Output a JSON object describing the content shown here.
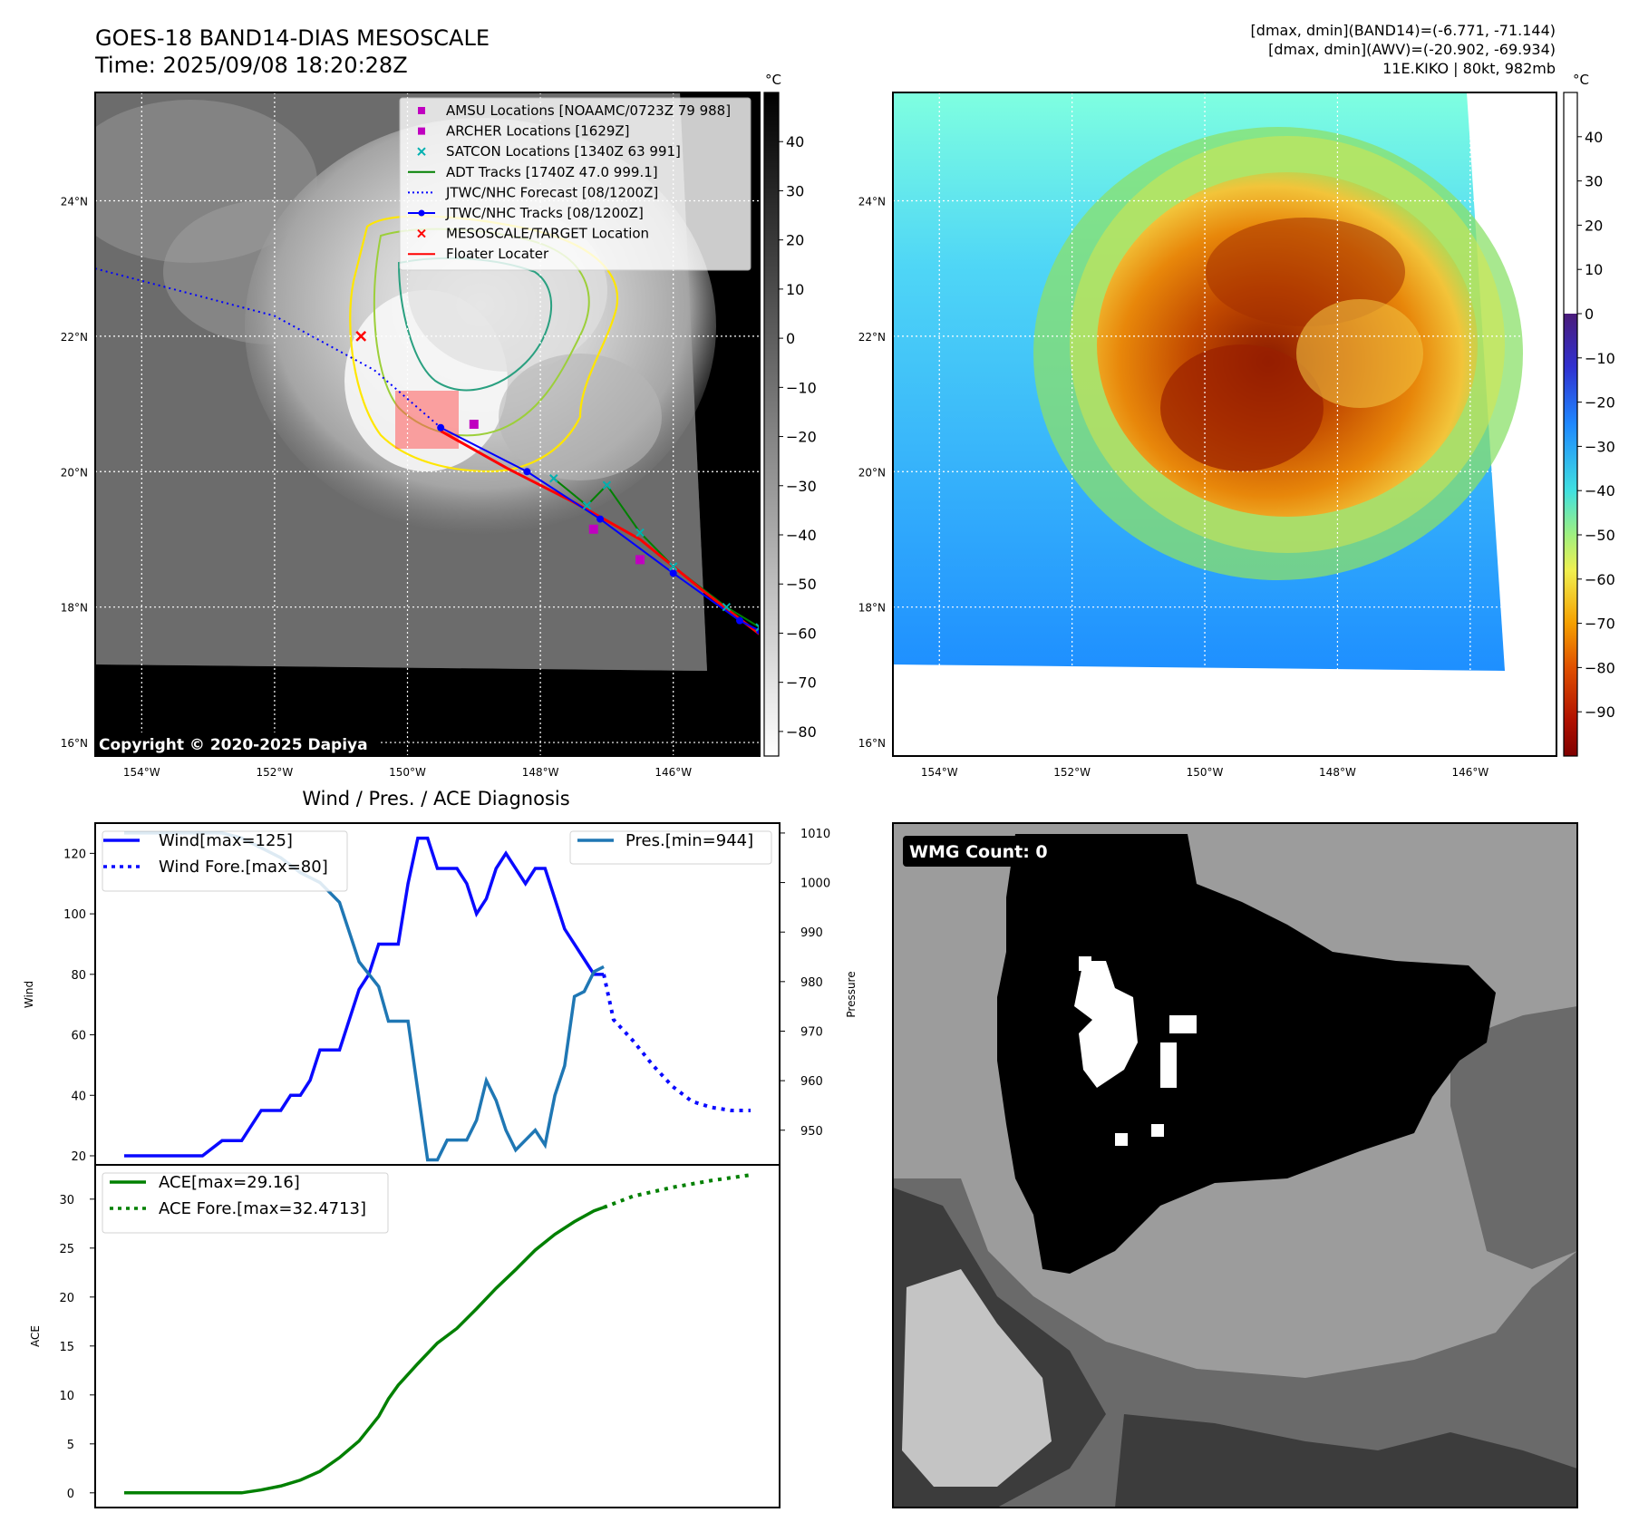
{
  "header": {
    "title": "GOES-18 BAND14-DIAS MESOSCALE",
    "time": "Time: 2025/09/08 18:20:28Z",
    "stats_band14": "[dmax, dmin](BAND14)=(-6.771, -71.144)",
    "stats_awv": "[dmax, dmin](AWV)=(-20.902, -69.934)",
    "storm": "11E.KIKO | 80kt, 982mb"
  },
  "colors": {
    "wind": "#0a0aff",
    "pressure": "#1f77b4",
    "ace": "#008000",
    "floater": "#ff0000",
    "amsu": "#c000c0",
    "satcon": "#00b0b0",
    "adt": "#008000"
  },
  "map": {
    "unit": "°C",
    "lat_ticks": [
      "16°N",
      "18°N",
      "20°N",
      "22°N",
      "24°N"
    ],
    "lon_ticks": [
      "154°W",
      "152°W",
      "150°W",
      "148°W",
      "146°W"
    ],
    "lon_range": [
      -154.7,
      -144.7
    ],
    "lat_range": [
      15.8,
      25.6
    ],
    "ir_colorbar": {
      "ticks": [
        40,
        30,
        20,
        10,
        0,
        -10,
        -20,
        -30,
        -40,
        -50,
        -60,
        -70,
        -80
      ],
      "range": [
        -85,
        50
      ]
    },
    "awv_colorbar": {
      "ticks": [
        40,
        30,
        20,
        10,
        0,
        -10,
        -20,
        -30,
        -40,
        -50,
        -60,
        -70,
        -80,
        -90
      ],
      "range": [
        -100,
        50
      ]
    },
    "copyright": "Copyright © 2020-2025 Dapiya",
    "legend": [
      {
        "label": "AMSU Locations [NOAAMC/0723Z 79 988]",
        "marker": "square",
        "color": "#c000c0"
      },
      {
        "label": "ARCHER Locations [1629Z]",
        "marker": "square",
        "color": "#c000c0"
      },
      {
        "label": "SATCON Locations [1340Z 63 991]",
        "marker": "x",
        "color": "#00b0b0"
      },
      {
        "label": "ADT Tracks [1740Z 47.0 999.1]",
        "marker": "line",
        "color": "#008000"
      },
      {
        "label": "JTWC/NHC Forecast [08/1200Z]",
        "marker": "dotted",
        "color": "#0000ff"
      },
      {
        "label": "JTWC/NHC Tracks [08/1200Z]",
        "marker": "dotline",
        "color": "#0000ff"
      },
      {
        "label": "MESOSCALE/TARGET Location",
        "marker": "x",
        "color": "#ff0000"
      },
      {
        "label": "Floater Locater",
        "marker": "line",
        "color": "#ff0000"
      }
    ],
    "forecast_track": [
      [
        -154.7,
        23.0
      ],
      [
        -152.0,
        22.3
      ],
      [
        -150.5,
        21.5
      ],
      [
        -149.5,
        20.65
      ]
    ],
    "best_track": [
      [
        -149.5,
        20.65
      ],
      [
        -148.2,
        20.0
      ],
      [
        -147.1,
        19.3
      ],
      [
        -146.0,
        18.5
      ],
      [
        -145.0,
        17.8
      ],
      [
        -144.7,
        17.65
      ]
    ],
    "floater_track": [
      [
        -149.5,
        20.6
      ],
      [
        -148.5,
        20.05
      ],
      [
        -147.5,
        19.55
      ],
      [
        -146.5,
        19.0
      ],
      [
        -145.5,
        18.2
      ],
      [
        -144.7,
        17.6
      ]
    ],
    "adt_track": [
      [
        -147.8,
        19.9
      ],
      [
        -147.3,
        19.5
      ],
      [
        -147.0,
        19.8
      ],
      [
        -146.5,
        19.1
      ],
      [
        -146.0,
        18.6
      ],
      [
        -145.2,
        18.0
      ],
      [
        -144.7,
        17.7
      ]
    ],
    "amsu_points": [
      [
        -149.0,
        20.7
      ],
      [
        -147.2,
        19.15
      ],
      [
        -146.5,
        18.7
      ]
    ],
    "target_point": [
      -150.7,
      22.0
    ]
  },
  "chart_data": [
    {
      "type": "line",
      "title": "Wind / Pres. / ACE Diagnosis",
      "ylabel": "Wind",
      "ylabel_right": "Pressure",
      "ylim": [
        17,
        130
      ],
      "ylim_right": [
        943,
        1012
      ],
      "yticks": [
        20,
        40,
        60,
        80,
        100,
        120
      ],
      "yticks_right": [
        950,
        960,
        970,
        980,
        990,
        1000,
        1010
      ],
      "x": [
        0,
        1,
        2,
        3,
        4,
        5,
        6,
        7,
        8,
        9,
        10,
        11,
        12,
        13,
        14,
        15,
        16,
        17,
        18,
        19,
        20,
        21,
        22,
        23,
        24,
        25,
        26,
        27,
        28,
        29,
        30,
        31,
        32,
        33,
        34,
        35,
        36,
        37,
        38,
        39,
        40,
        41,
        42,
        43,
        44,
        45,
        46,
        47,
        48,
        49,
        50,
        51,
        52,
        53,
        54,
        55,
        56,
        57,
        58,
        59,
        60,
        61,
        62,
        63,
        64
      ],
      "series": [
        {
          "name": "Wind[max=125]",
          "axis": "left",
          "x": [
            0,
            2,
            4,
            6,
            8,
            10,
            12,
            14,
            16,
            17,
            18,
            19,
            20,
            22,
            24,
            25,
            26,
            27,
            28,
            29,
            30,
            31,
            32,
            33,
            34,
            35,
            36,
            37,
            38,
            39,
            40,
            41,
            42,
            43,
            44,
            45,
            46,
            47,
            48,
            49
          ],
          "values": [
            20,
            20,
            20,
            20,
            20,
            25,
            25,
            35,
            35,
            40,
            40,
            45,
            55,
            55,
            75,
            80,
            90,
            90,
            90,
            110,
            125,
            125,
            115,
            115,
            115,
            110,
            100,
            105,
            115,
            120,
            115,
            110,
            115,
            115,
            105,
            95,
            90,
            85,
            80,
            80
          ]
        },
        {
          "name": "Wind Fore.[max=80]",
          "axis": "left",
          "x": [
            49,
            50,
            52,
            54,
            56,
            58,
            60,
            62,
            64
          ],
          "values": [
            80,
            65,
            58,
            50,
            43,
            38,
            36,
            35,
            35
          ]
        },
        {
          "name": "Pres.[min=944]",
          "axis": "right",
          "x": [
            0,
            2,
            4,
            6,
            8,
            10,
            12,
            14,
            16,
            18,
            20,
            22,
            24,
            26,
            27,
            28,
            29,
            30,
            31,
            32,
            33,
            34,
            35,
            36,
            37,
            38,
            39,
            40,
            41,
            42,
            43,
            44,
            45,
            46,
            47,
            48,
            49
          ],
          "values": [
            1010,
            1010,
            1010,
            1010,
            1010,
            1010,
            1009,
            1007,
            1005,
            1002,
            1000,
            996,
            984,
            979,
            972,
            972,
            972,
            958,
            944,
            944,
            948,
            948,
            948,
            952,
            960,
            956,
            950,
            946,
            948,
            950,
            947,
            957,
            963,
            977,
            978,
            982,
            983
          ]
        }
      ]
    },
    {
      "type": "line",
      "ylabel": "ACE",
      "ylim": [
        -1.5,
        33.5
      ],
      "yticks": [
        0,
        5,
        10,
        15,
        20,
        25,
        30
      ],
      "series": [
        {
          "name": "ACE[max=29.16]",
          "x": [
            0,
            4,
            8,
            12,
            14,
            16,
            18,
            20,
            22,
            24,
            26,
            27,
            28,
            30,
            32,
            34,
            36,
            38,
            40,
            42,
            44,
            46,
            48,
            49
          ],
          "values": [
            0,
            0,
            0,
            0,
            0.3,
            0.7,
            1.3,
            2.2,
            3.6,
            5.3,
            7.8,
            9.6,
            11.0,
            13.2,
            15.3,
            16.8,
            18.8,
            20.9,
            22.8,
            24.8,
            26.4,
            27.7,
            28.8,
            29.16
          ]
        },
        {
          "name": "ACE Fore.[max=32.4713]",
          "x": [
            49,
            52,
            56,
            60,
            64
          ],
          "values": [
            29.16,
            30.3,
            31.2,
            31.9,
            32.47
          ]
        }
      ]
    }
  ],
  "wmg": {
    "label": "WMG Count: 0"
  }
}
